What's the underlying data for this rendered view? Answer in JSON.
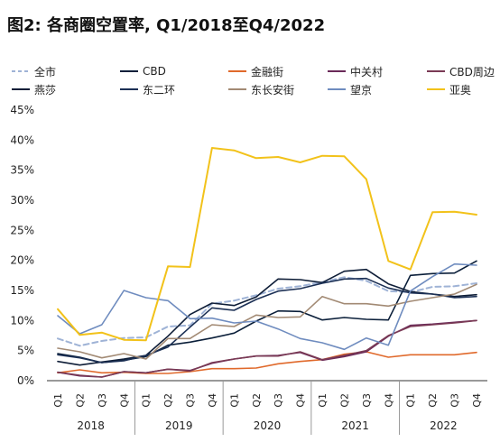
{
  "title": "图2: 各商圈空置率, Q1/2018至Q4/2022",
  "colors": {
    "axis": "#333333",
    "tick_text": "#222222"
  },
  "chart_data": {
    "type": "line",
    "title": "图2: 各商圈空置率, Q1/2018至Q4/2022",
    "xlabel": "",
    "ylabel": "",
    "ylim": [
      0,
      45
    ],
    "y_ticks": [
      "0%",
      "5%",
      "10%",
      "15%",
      "20%",
      "25%",
      "30%",
      "35%",
      "40%",
      "45%"
    ],
    "categories": [
      "Q1",
      "Q2",
      "Q3",
      "Q4",
      "Q1",
      "Q2",
      "Q3",
      "Q4",
      "Q1",
      "Q2",
      "Q3",
      "Q4",
      "Q1",
      "Q2",
      "Q3",
      "Q4",
      "Q1",
      "Q2",
      "Q3",
      "Q4"
    ],
    "years": [
      "2018",
      "2019",
      "2020",
      "2021",
      "2022"
    ],
    "grid": false,
    "legend_position": "top",
    "series": [
      {
        "name": "全市",
        "color": "#9fb3d6",
        "dash": "6,4",
        "width": 2,
        "values": [
          7.0,
          5.8,
          6.6,
          7.1,
          7.2,
          9.0,
          9.2,
          12.8,
          13.3,
          14.2,
          15.3,
          15.7,
          16.4,
          17.2,
          16.6,
          14.9,
          14.7,
          15.6,
          15.7,
          16.2
        ]
      },
      {
        "name": "CBD",
        "color": "#0b1f3a",
        "dash": "",
        "width": 1.6,
        "values": [
          4.5,
          3.9,
          3.0,
          3.4,
          4.0,
          5.9,
          6.4,
          7.1,
          7.9,
          9.9,
          11.6,
          11.5,
          10.1,
          10.5,
          10.2,
          10.1,
          17.5,
          17.8,
          17.9,
          19.9
        ]
      },
      {
        "name": "金融街",
        "color": "#e0692b",
        "dash": "",
        "width": 1.6,
        "values": [
          1.3,
          1.8,
          1.3,
          1.4,
          1.2,
          1.2,
          1.5,
          2.0,
          2.0,
          2.1,
          2.8,
          3.2,
          3.5,
          4.4,
          4.8,
          3.9,
          4.3,
          4.3,
          4.3,
          4.7
        ]
      },
      {
        "name": "中关村",
        "color": "#6a2a59",
        "dash": "",
        "width": 1.6,
        "values": [
          1.4,
          0.8,
          0.6,
          1.5,
          1.3,
          1.9,
          1.7,
          2.9,
          3.6,
          4.1,
          4.2,
          4.7,
          3.4,
          4.0,
          4.8,
          7.4,
          9.2,
          9.4,
          9.7,
          10.0
        ]
      },
      {
        "name": "CBD周边",
        "color": "#7a3a55",
        "dash": "",
        "width": 1.6,
        "values": [
          1.4,
          0.9,
          0.6,
          1.5,
          1.3,
          1.9,
          1.6,
          3.0,
          3.6,
          4.1,
          4.1,
          4.8,
          3.5,
          4.2,
          5.0,
          7.5,
          9.0,
          9.3,
          9.6,
          10.0
        ]
      },
      {
        "name": "燕莎",
        "color": "#0f1e38",
        "dash": "",
        "width": 1.6,
        "values": [
          3.2,
          2.6,
          3.1,
          3.6,
          4.2,
          7.4,
          11.0,
          12.9,
          12.5,
          13.9,
          16.9,
          16.8,
          16.3,
          18.2,
          18.5,
          16.1,
          14.8,
          14.4,
          14.0,
          14.3
        ]
      },
      {
        "name": "东二环",
        "color": "#1c3055",
        "dash": "",
        "width": 1.6,
        "values": [
          4.3,
          3.8,
          3.0,
          3.3,
          4.2,
          5.6,
          8.9,
          12.1,
          11.7,
          13.5,
          14.9,
          15.3,
          16.2,
          16.9,
          17.0,
          15.4,
          14.6,
          14.4,
          13.8,
          14.0
        ]
      },
      {
        "name": "东长安街",
        "color": "#a28a74",
        "dash": "",
        "width": 1.6,
        "values": [
          5.4,
          4.8,
          3.8,
          4.5,
          3.6,
          7.0,
          7.0,
          9.3,
          9.0,
          10.9,
          10.5,
          10.6,
          14.0,
          12.8,
          12.8,
          12.4,
          13.2,
          13.8,
          14.4,
          16.0
        ]
      },
      {
        "name": "望京",
        "color": "#6f8cbf",
        "dash": "",
        "width": 1.6,
        "values": [
          10.8,
          7.8,
          9.3,
          15.0,
          13.8,
          13.3,
          10.3,
          10.4,
          9.6,
          9.9,
          8.6,
          7.0,
          6.3,
          5.2,
          7.1,
          5.9,
          14.9,
          17.3,
          19.4,
          19.2
        ]
      },
      {
        "name": "亚奥",
        "color": "#f2c21a",
        "dash": "",
        "width": 2,
        "values": [
          11.9,
          7.6,
          8.0,
          6.8,
          6.7,
          19.0,
          18.9,
          38.7,
          38.3,
          37.0,
          37.2,
          36.3,
          37.4,
          37.3,
          33.5,
          19.9,
          18.5,
          28.0,
          28.1,
          27.6
        ]
      }
    ]
  }
}
